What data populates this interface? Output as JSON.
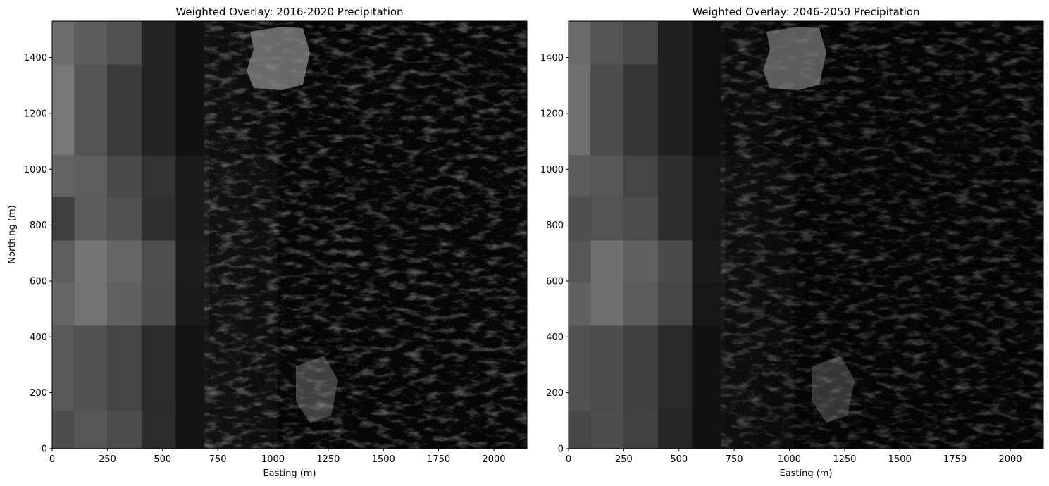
{
  "chart_data": [
    {
      "type": "heatmap",
      "title": "Weighted Overlay: 2016-2020 Precipitation",
      "xlabel": "Easting (m)",
      "ylabel": "Northing (m)",
      "xlim": [
        0,
        2150
      ],
      "ylim": [
        0,
        1530
      ],
      "xticks": [
        0,
        250,
        500,
        750,
        1000,
        1250,
        1500,
        1750,
        2000
      ],
      "yticks": [
        0,
        200,
        400,
        600,
        800,
        1000,
        1200,
        1400
      ],
      "colormap": "gray",
      "grid": false,
      "block_x_edges": [
        0,
        100,
        250,
        405,
        560,
        710,
        865,
        1020
      ],
      "block_y_edges": [
        0,
        135,
        440,
        595,
        745,
        900,
        1050,
        1375,
        1530
      ],
      "block_gray": [
        [
          0.3,
          0.34,
          0.3,
          0.17,
          0.08,
          0.06,
          0.05
        ],
        [
          0.35,
          0.32,
          0.27,
          0.17,
          0.08,
          0.06,
          0.05
        ],
        [
          0.4,
          0.45,
          0.38,
          0.3,
          0.1,
          0.06,
          0.05
        ],
        [
          0.37,
          0.46,
          0.4,
          0.31,
          0.11,
          0.06,
          0.05
        ],
        [
          0.25,
          0.36,
          0.32,
          0.19,
          0.1,
          0.06,
          0.05
        ],
        [
          0.39,
          0.37,
          0.29,
          0.2,
          0.1,
          0.06,
          0.05
        ],
        [
          0.47,
          0.33,
          0.23,
          0.14,
          0.07,
          0.05,
          0.04
        ],
        [
          0.43,
          0.36,
          0.32,
          0.14,
          0.07,
          0.05,
          0.04
        ]
      ]
    },
    {
      "type": "heatmap",
      "title": "Weighted Overlay: 2046-2050 Precipitation",
      "xlabel": "Easting (m)",
      "ylabel": "",
      "xlim": [
        0,
        2150
      ],
      "ylim": [
        0,
        1530
      ],
      "xticks": [
        0,
        250,
        500,
        750,
        1000,
        1250,
        1500,
        1750,
        2000
      ],
      "yticks": [
        0,
        200,
        400,
        600,
        800,
        1000,
        1200,
        1400
      ],
      "colormap": "gray",
      "grid": false,
      "block_x_edges": [
        0,
        100,
        250,
        405,
        560,
        710,
        865,
        1020
      ],
      "block_y_edges": [
        0,
        135,
        440,
        595,
        745,
        900,
        1050,
        1375,
        1530
      ],
      "block_gray": [
        [
          0.28,
          0.3,
          0.26,
          0.15,
          0.07,
          0.05,
          0.04
        ],
        [
          0.32,
          0.3,
          0.25,
          0.16,
          0.07,
          0.05,
          0.04
        ],
        [
          0.38,
          0.44,
          0.36,
          0.27,
          0.09,
          0.05,
          0.04
        ],
        [
          0.34,
          0.44,
          0.38,
          0.29,
          0.1,
          0.05,
          0.04
        ],
        [
          0.31,
          0.33,
          0.3,
          0.18,
          0.09,
          0.05,
          0.04
        ],
        [
          0.36,
          0.34,
          0.27,
          0.18,
          0.09,
          0.05,
          0.04
        ],
        [
          0.44,
          0.3,
          0.21,
          0.13,
          0.06,
          0.04,
          0.03
        ],
        [
          0.41,
          0.33,
          0.29,
          0.13,
          0.06,
          0.04,
          0.03
        ]
      ]
    }
  ]
}
